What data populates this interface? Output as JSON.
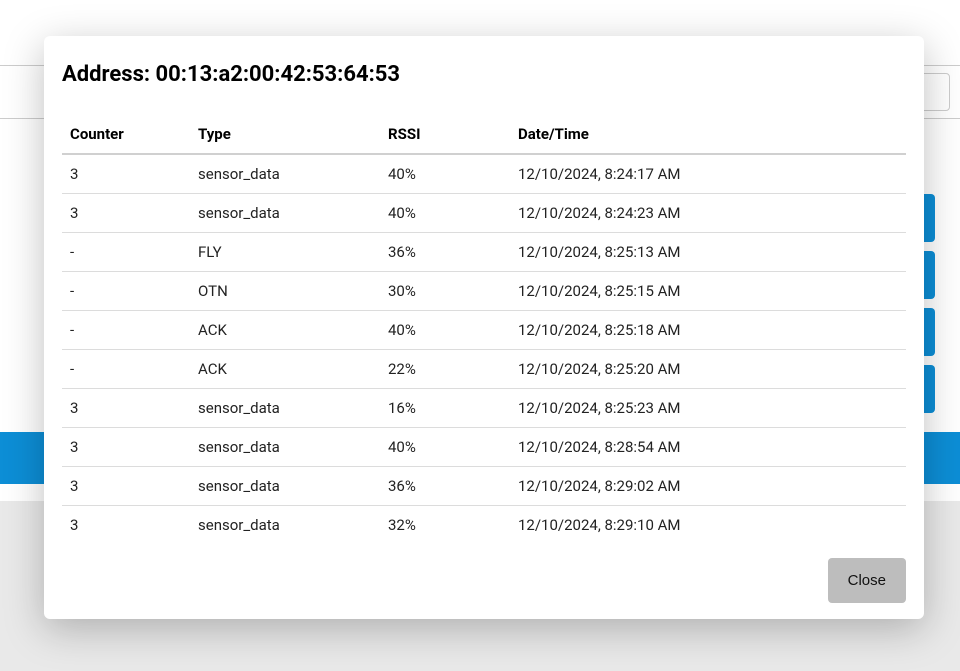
{
  "colors": {
    "modal_bg": "#ffffff",
    "shadow": "rgba(0,0,0,0.25)",
    "table_header_border": "#d0d0d0",
    "row_border": "#dcdcdc",
    "text_primary": "#000000",
    "text_cell": "#222222",
    "bg_accent": "#0d8ed6",
    "bg_footer": "#e9e9e9",
    "close_btn_bg": "#bdbdbd"
  },
  "modal": {
    "title": "Address: 00:13:a2:00:42:53:64:53",
    "close_label": "Close"
  },
  "table": {
    "columns": {
      "counter": "Counter",
      "type": "Type",
      "rssi": "RSSI",
      "datetime": "Date/Time"
    },
    "rows": [
      {
        "counter": "3",
        "type": "sensor_data",
        "rssi": "40%",
        "datetime": "12/10/2024, 8:24:17 AM"
      },
      {
        "counter": "3",
        "type": "sensor_data",
        "rssi": "40%",
        "datetime": "12/10/2024, 8:24:23 AM"
      },
      {
        "counter": "-",
        "type": "FLY",
        "rssi": "36%",
        "datetime": "12/10/2024, 8:25:13 AM"
      },
      {
        "counter": "-",
        "type": "OTN",
        "rssi": "30%",
        "datetime": "12/10/2024, 8:25:15 AM"
      },
      {
        "counter": "-",
        "type": "ACK",
        "rssi": "40%",
        "datetime": "12/10/2024, 8:25:18 AM"
      },
      {
        "counter": "-",
        "type": "ACK",
        "rssi": "22%",
        "datetime": "12/10/2024, 8:25:20 AM"
      },
      {
        "counter": "3",
        "type": "sensor_data",
        "rssi": "16%",
        "datetime": "12/10/2024, 8:25:23 AM"
      },
      {
        "counter": "3",
        "type": "sensor_data",
        "rssi": "40%",
        "datetime": "12/10/2024, 8:28:54 AM"
      },
      {
        "counter": "3",
        "type": "sensor_data",
        "rssi": "36%",
        "datetime": "12/10/2024, 8:29:02 AM"
      },
      {
        "counter": "3",
        "type": "sensor_data",
        "rssi": "32%",
        "datetime": "12/10/2024, 8:29:10 AM"
      }
    ]
  }
}
